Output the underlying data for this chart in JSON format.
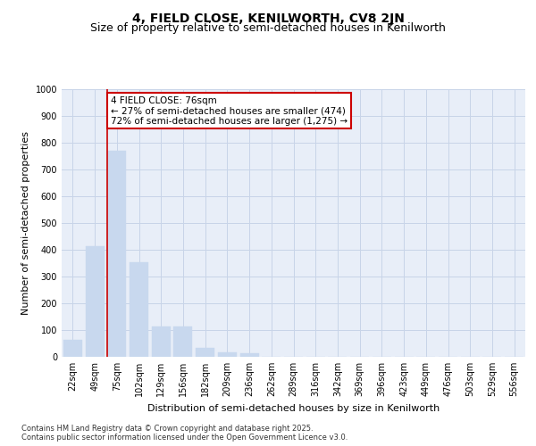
{
  "title1": "4, FIELD CLOSE, KENILWORTH, CV8 2JN",
  "title2": "Size of property relative to semi-detached houses in Kenilworth",
  "xlabel": "Distribution of semi-detached houses by size in Kenilworth",
  "ylabel": "Number of semi-detached properties",
  "footnote": "Contains HM Land Registry data © Crown copyright and database right 2025.\nContains public sector information licensed under the Open Government Licence v3.0.",
  "categories": [
    "22sqm",
    "49sqm",
    "75sqm",
    "102sqm",
    "129sqm",
    "156sqm",
    "182sqm",
    "209sqm",
    "236sqm",
    "262sqm",
    "289sqm",
    "316sqm",
    "342sqm",
    "369sqm",
    "396sqm",
    "423sqm",
    "449sqm",
    "476sqm",
    "503sqm",
    "529sqm",
    "556sqm"
  ],
  "values": [
    62,
    413,
    770,
    355,
    115,
    115,
    35,
    18,
    15,
    0,
    0,
    0,
    0,
    0,
    0,
    0,
    0,
    0,
    0,
    0,
    0
  ],
  "bar_color": "#c8d8ee",
  "bar_edge_color": "#c8d8ee",
  "grid_color": "#c8d4e8",
  "background_color": "#e8eef8",
  "subject_line_color": "#cc0000",
  "annotation_text": "4 FIELD CLOSE: 76sqm\n← 27% of semi-detached houses are smaller (474)\n72% of semi-detached houses are larger (1,275) →",
  "annotation_box_color": "#cc0000",
  "ylim": [
    0,
    1000
  ],
  "yticks": [
    0,
    100,
    200,
    300,
    400,
    500,
    600,
    700,
    800,
    900,
    1000
  ],
  "title1_fontsize": 10,
  "title2_fontsize": 9,
  "xlabel_fontsize": 8,
  "ylabel_fontsize": 8,
  "tick_fontsize": 7,
  "footnote_fontsize": 6,
  "ann_fontsize": 7.5
}
